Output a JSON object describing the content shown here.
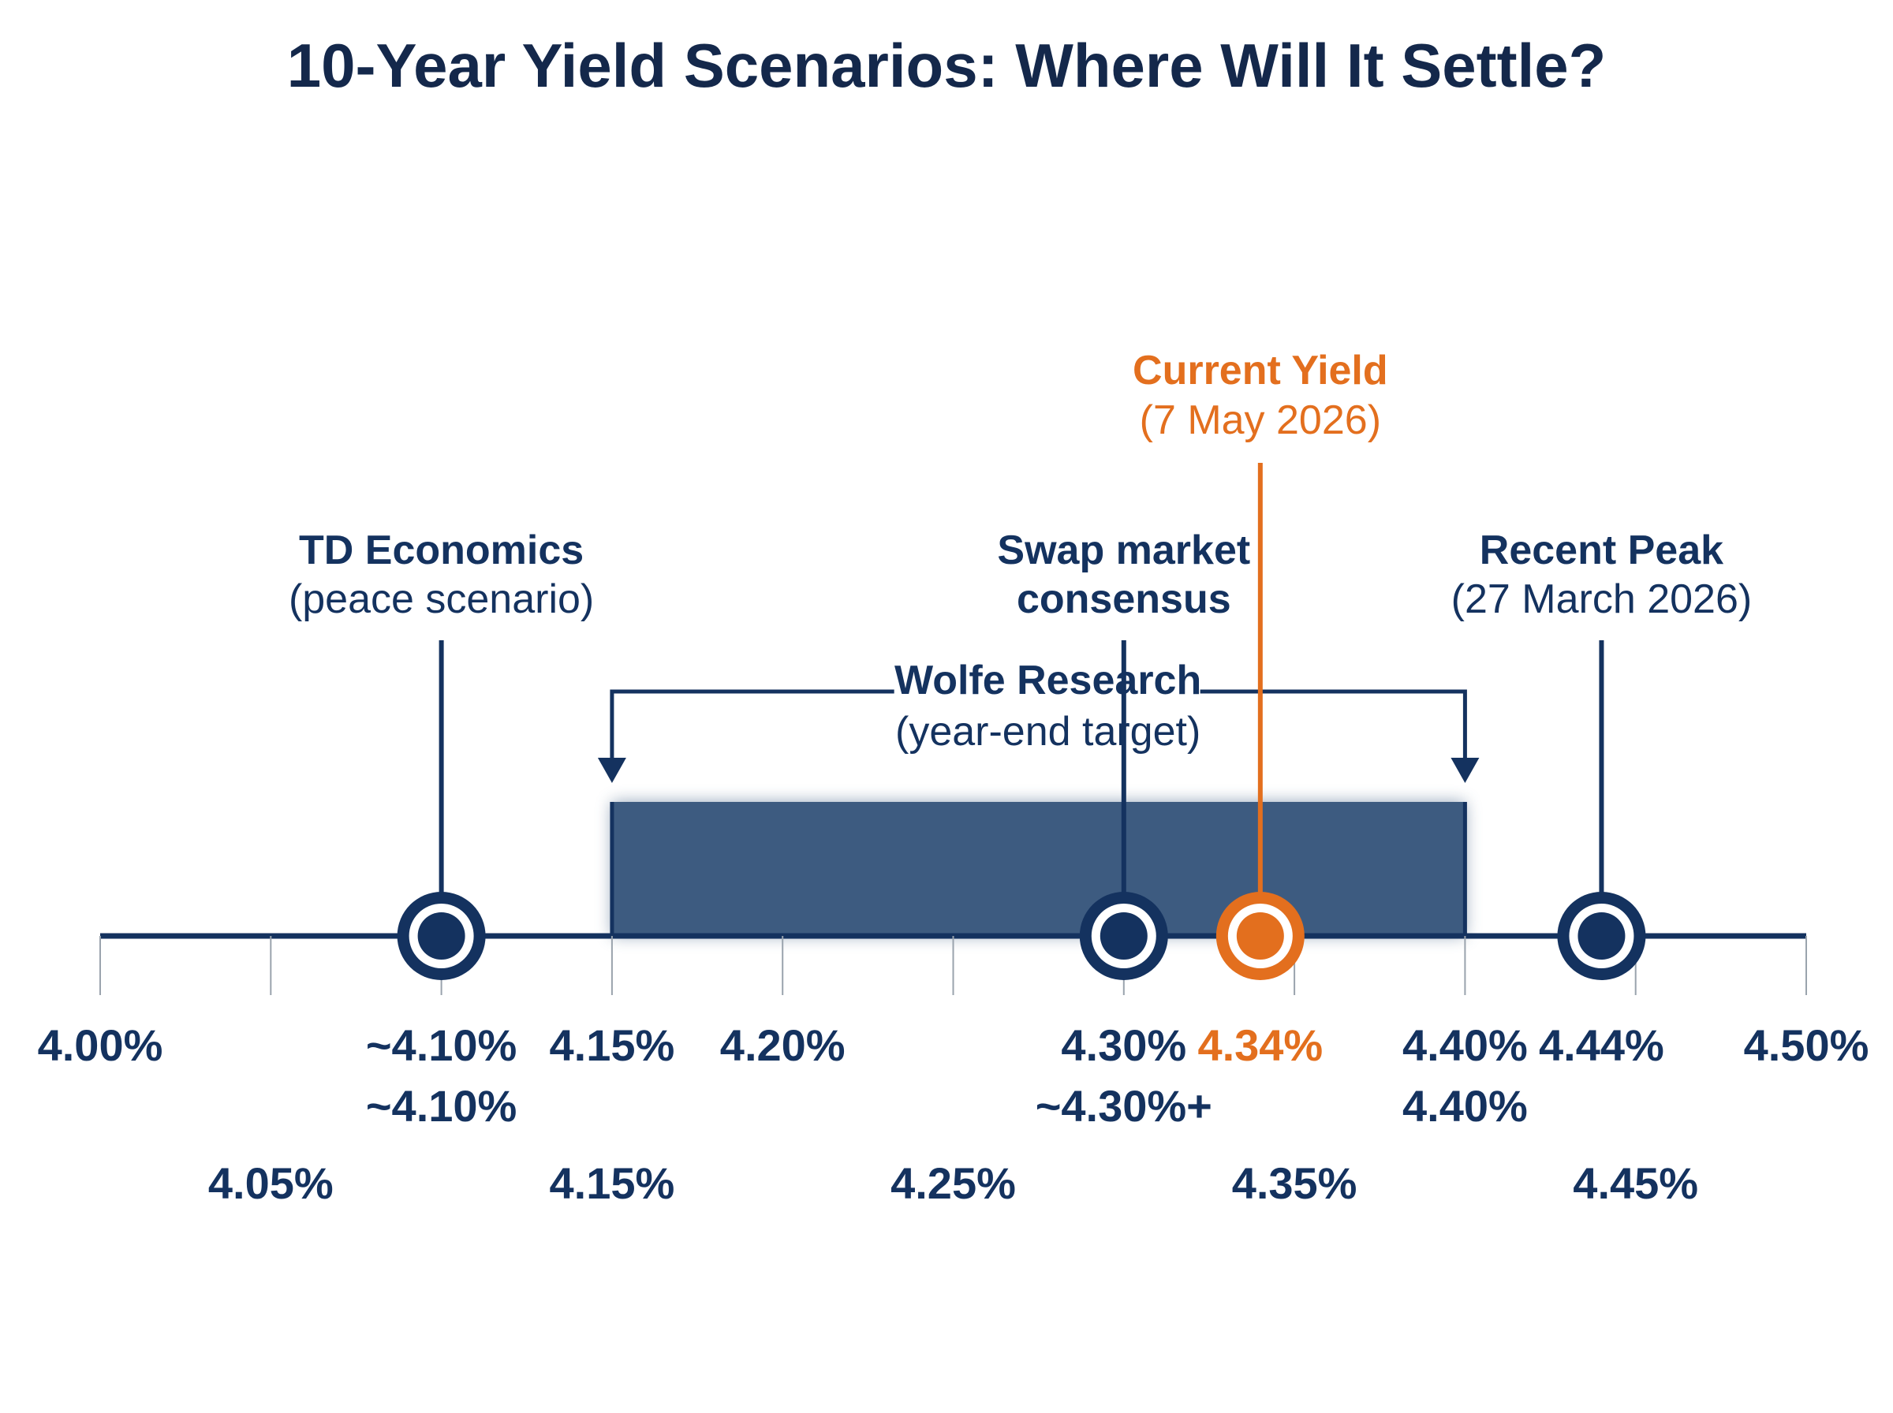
{
  "chart_data": {
    "type": "number-line",
    "title": "10-Year Yield Scenarios: Where Will It Settle?",
    "colors": {
      "navy": "#14325f",
      "band": "#3d5b80",
      "accent": "#e36f1e",
      "title": "#14284b"
    },
    "xlim": [
      4.0,
      4.5
    ],
    "row1_labels": [
      {
        "x": 4.0,
        "text": "4.00%",
        "accent": false
      },
      {
        "x": 4.1,
        "text": "~4.10%",
        "accent": false
      },
      {
        "x": 4.15,
        "text": "4.15%",
        "accent": false
      },
      {
        "x": 4.2,
        "text": "4.20%",
        "accent": false
      },
      {
        "x": 4.3,
        "text": "4.30%",
        "accent": false
      },
      {
        "x": 4.34,
        "text": "4.34%",
        "accent": true
      },
      {
        "x": 4.4,
        "text": "4.40%",
        "accent": false
      },
      {
        "x": 4.44,
        "text": "4.44%",
        "accent": false
      },
      {
        "x": 4.5,
        "text": "4.50%",
        "accent": false
      }
    ],
    "row2_labels": [
      {
        "x": 4.1,
        "text": "~4.10%"
      },
      {
        "x": 4.3,
        "text": "~4.30%+"
      },
      {
        "x": 4.4,
        "text": "4.40%"
      }
    ],
    "row3_labels": [
      {
        "x": 4.05,
        "text": "4.05%"
      },
      {
        "x": 4.15,
        "text": "4.15%"
      },
      {
        "x": 4.25,
        "text": "4.25%"
      },
      {
        "x": 4.35,
        "text": "4.35%"
      },
      {
        "x": 4.45,
        "text": "4.45%"
      }
    ],
    "ticks": [
      4.0,
      4.05,
      4.1,
      4.15,
      4.2,
      4.25,
      4.3,
      4.35,
      4.4,
      4.45,
      4.5
    ],
    "range": {
      "name": "Wolfe Research",
      "note": "(year-end target)",
      "from": 4.15,
      "to": 4.4
    },
    "markers": [
      {
        "x": 4.1,
        "label": "TD Economics",
        "sublabel": "(peace scenario)",
        "accent": false
      },
      {
        "x": 4.3,
        "label": "Swap market",
        "sublabel": "consensus",
        "accent": false
      },
      {
        "x": 4.34,
        "label": "Current Yield",
        "sublabel": "(7 May 2026)",
        "accent": true
      },
      {
        "x": 4.44,
        "label": "Recent Peak",
        "sublabel": "(27 March 2026)",
        "accent": false
      }
    ]
  }
}
